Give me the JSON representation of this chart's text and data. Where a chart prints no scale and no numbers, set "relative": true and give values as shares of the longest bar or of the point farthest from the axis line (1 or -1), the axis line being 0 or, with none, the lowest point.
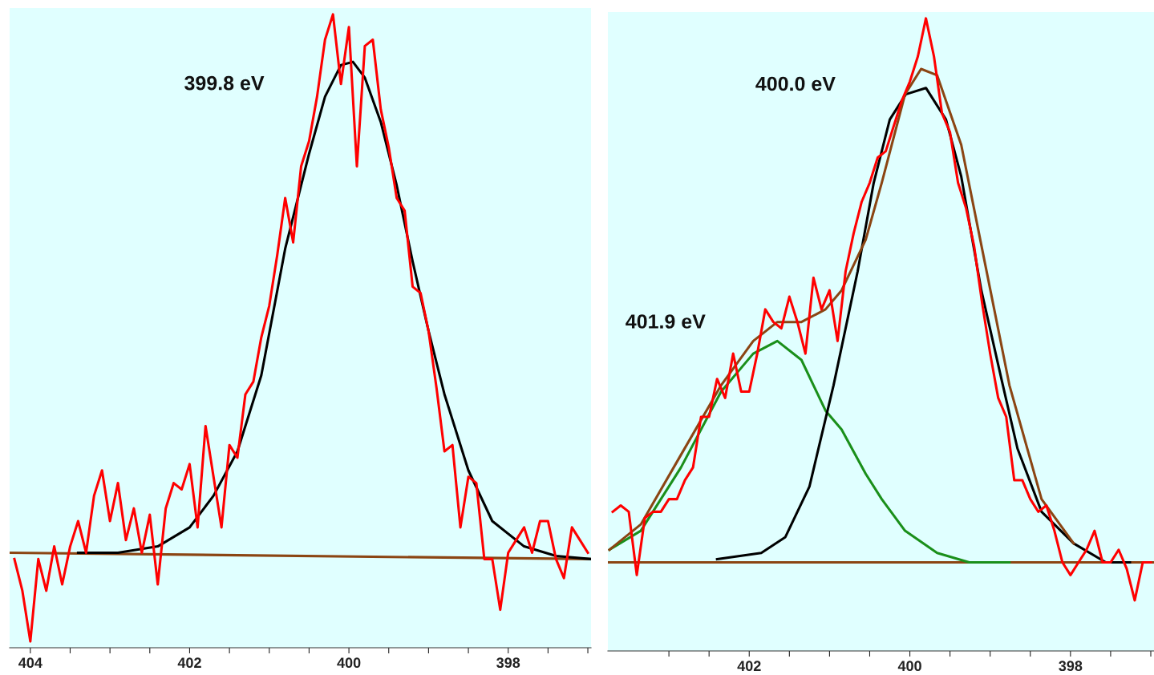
{
  "chart_data": [
    {
      "type": "line",
      "relative": true,
      "xlim": [
        404.26,
        396.96
      ],
      "xticks": [
        404,
        {
          "value": 403.5,
          "label": null
        },
        {
          "value": 403,
          "label": null
        },
        {
          "value": 402.5,
          "label": null
        },
        402,
        {
          "value": 401.5,
          "label": null
        },
        {
          "value": 401,
          "label": null
        },
        {
          "value": 400.5,
          "label": null
        },
        400,
        {
          "value": 399.5,
          "label": null
        },
        {
          "value": 399,
          "label": null
        },
        {
          "value": 398.5,
          "label": null
        },
        398,
        {
          "value": 397.5,
          "label": null
        },
        {
          "value": 397,
          "label": null
        }
      ],
      "tick_labels": "x",
      "marker": "none",
      "line_style": "solid",
      "annotations": [
        "399.8 eV"
      ],
      "series": [
        {
          "color": "#8b4513",
          "x": [
            404.26,
            396.96
          ],
          "values": [
            0.15,
            0.14
          ]
        },
        {
          "color": "#000000",
          "x": [
            403.4,
            402.9,
            402.4,
            402.0,
            401.7,
            401.4,
            401.1,
            400.8,
            400.5,
            400.3,
            400.1,
            399.95,
            399.8,
            399.6,
            399.4,
            399.2,
            399.0,
            398.8,
            398.5,
            398.2,
            397.8,
            397.4,
            396.96
          ],
          "values": [
            0.15,
            0.15,
            0.16,
            0.19,
            0.24,
            0.31,
            0.43,
            0.63,
            0.78,
            0.87,
            0.92,
            0.925,
            0.9,
            0.83,
            0.73,
            0.61,
            0.5,
            0.4,
            0.28,
            0.2,
            0.16,
            0.145,
            0.14
          ]
        },
        {
          "color": "#ff0000",
          "x": [
            404.2,
            404.1,
            404.0,
            403.9,
            403.8,
            403.7,
            403.6,
            403.5,
            403.4,
            403.3,
            403.2,
            403.1,
            403.0,
            402.9,
            402.8,
            402.7,
            402.6,
            402.5,
            402.4,
            402.3,
            402.2,
            402.1,
            402.0,
            401.9,
            401.8,
            401.7,
            401.6,
            401.5,
            401.4,
            401.3,
            401.2,
            401.1,
            401.0,
            400.9,
            400.8,
            400.7,
            400.6,
            400.5,
            400.4,
            400.3,
            400.2,
            400.1,
            400.0,
            399.9,
            399.8,
            399.7,
            399.6,
            399.5,
            399.4,
            399.3,
            399.2,
            399.1,
            399.0,
            398.9,
            398.8,
            398.7,
            398.6,
            398.5,
            398.4,
            398.3,
            398.2,
            398.1,
            398.0,
            397.9,
            397.8,
            397.7,
            397.6,
            397.5,
            397.4,
            397.3,
            397.2,
            397.1,
            397.0
          ],
          "values": [
            0.14,
            0.09,
            0.01,
            0.14,
            0.09,
            0.16,
            0.1,
            0.16,
            0.2,
            0.15,
            0.24,
            0.28,
            0.2,
            0.26,
            0.17,
            0.22,
            0.15,
            0.21,
            0.1,
            0.22,
            0.26,
            0.25,
            0.29,
            0.19,
            0.35,
            0.27,
            0.19,
            0.32,
            0.3,
            0.4,
            0.42,
            0.49,
            0.54,
            0.62,
            0.71,
            0.64,
            0.76,
            0.8,
            0.87,
            0.96,
            1.0,
            0.89,
            0.98,
            0.76,
            0.95,
            0.96,
            0.85,
            0.79,
            0.71,
            0.69,
            0.57,
            0.56,
            0.5,
            0.41,
            0.31,
            0.32,
            0.19,
            0.27,
            0.26,
            0.14,
            0.14,
            0.06,
            0.15,
            0.17,
            0.19,
            0.15,
            0.2,
            0.2,
            0.14,
            0.11,
            0.19,
            0.17,
            0.15
          ]
        }
      ]
    },
    {
      "type": "line",
      "relative": true,
      "xlim": [
        403.76,
        396.96
      ],
      "xticks": [
        {
          "value": 403,
          "label": null
        },
        {
          "value": 402.5,
          "label": null
        },
        402,
        {
          "value": 401.5,
          "label": null
        },
        {
          "value": 401,
          "label": null
        },
        {
          "value": 400.5,
          "label": null
        },
        400,
        {
          "value": 399.5,
          "label": null
        },
        {
          "value": 399,
          "label": null
        },
        {
          "value": 398.5,
          "label": null
        },
        398,
        {
          "value": 397.5,
          "label": null
        },
        {
          "value": 397,
          "label": null
        }
      ],
      "tick_labels": "x",
      "marker": "none",
      "line_style": "solid",
      "annotations": [
        "400.0 eV",
        "401.9 eV"
      ],
      "series": [
        {
          "color": "#8b4513",
          "x": [
            403.76,
            396.96
          ],
          "values": [
            0.14,
            0.14
          ]
        },
        {
          "color": "#1a8f1a",
          "x": [
            403.74,
            403.35,
            402.85,
            402.35,
            401.95,
            401.65,
            401.35,
            401.05,
            400.85,
            400.55,
            400.35,
            400.06,
            399.66,
            399.26,
            398.76
          ],
          "values": [
            0.16,
            0.19,
            0.29,
            0.41,
            0.47,
            0.49,
            0.46,
            0.38,
            0.35,
            0.28,
            0.24,
            0.19,
            0.155,
            0.14,
            0.14
          ]
        },
        {
          "color": "#000000",
          "x": [
            402.4,
            401.85,
            401.55,
            401.25,
            400.95,
            400.65,
            400.45,
            400.25,
            400.05,
            399.8,
            399.55,
            399.36,
            399.11,
            398.86,
            398.66,
            398.36,
            397.96,
            397.56,
            397.26
          ],
          "values": [
            0.145,
            0.155,
            0.18,
            0.26,
            0.42,
            0.6,
            0.74,
            0.84,
            0.88,
            0.89,
            0.84,
            0.75,
            0.57,
            0.43,
            0.32,
            0.22,
            0.17,
            0.14,
            0.14
          ]
        },
        {
          "color": "#8b4513",
          "x": [
            403.74,
            403.35,
            402.85,
            402.35,
            401.95,
            401.65,
            401.35,
            401.05,
            400.85,
            400.55,
            400.35,
            400.06,
            399.86,
            399.66,
            399.36,
            399.06,
            398.76,
            398.36,
            397.96
          ],
          "values": [
            0.16,
            0.2,
            0.31,
            0.42,
            0.49,
            0.52,
            0.52,
            0.54,
            0.57,
            0.65,
            0.74,
            0.88,
            0.92,
            0.91,
            0.8,
            0.61,
            0.42,
            0.24,
            0.17
          ]
        },
        {
          "color": "#ff0000",
          "x": [
            403.7,
            403.6,
            403.5,
            403.4,
            403.3,
            403.2,
            403.1,
            403.0,
            402.9,
            402.8,
            402.7,
            402.6,
            402.5,
            402.4,
            402.3,
            402.2,
            402.1,
            402.0,
            401.9,
            401.8,
            401.7,
            401.6,
            401.5,
            401.4,
            401.3,
            401.2,
            401.1,
            401.0,
            400.9,
            400.8,
            400.7,
            400.6,
            400.5,
            400.4,
            400.3,
            400.2,
            400.1,
            400.0,
            399.9,
            399.8,
            399.7,
            399.6,
            399.5,
            399.4,
            399.3,
            399.2,
            399.1,
            399.0,
            398.9,
            398.8,
            398.7,
            398.6,
            398.5,
            398.4,
            398.3,
            398.2,
            398.1,
            398.0,
            397.9,
            397.8,
            397.7,
            397.6,
            397.5,
            397.4,
            397.3,
            397.2,
            397.1,
            397.0
          ],
          "values": [
            0.22,
            0.23,
            0.22,
            0.12,
            0.21,
            0.22,
            0.22,
            0.24,
            0.24,
            0.27,
            0.29,
            0.37,
            0.37,
            0.43,
            0.4,
            0.47,
            0.41,
            0.41,
            0.47,
            0.54,
            0.52,
            0.51,
            0.56,
            0.52,
            0.47,
            0.59,
            0.54,
            0.57,
            0.49,
            0.6,
            0.66,
            0.71,
            0.74,
            0.78,
            0.79,
            0.83,
            0.87,
            0.9,
            0.94,
            1.0,
            0.94,
            0.85,
            0.82,
            0.74,
            0.7,
            0.64,
            0.55,
            0.47,
            0.4,
            0.37,
            0.27,
            0.27,
            0.24,
            0.22,
            0.23,
            0.19,
            0.14,
            0.12,
            0.14,
            0.16,
            0.19,
            0.14,
            0.14,
            0.16,
            0.13,
            0.08,
            0.14,
            0.14
          ]
        }
      ]
    }
  ]
}
